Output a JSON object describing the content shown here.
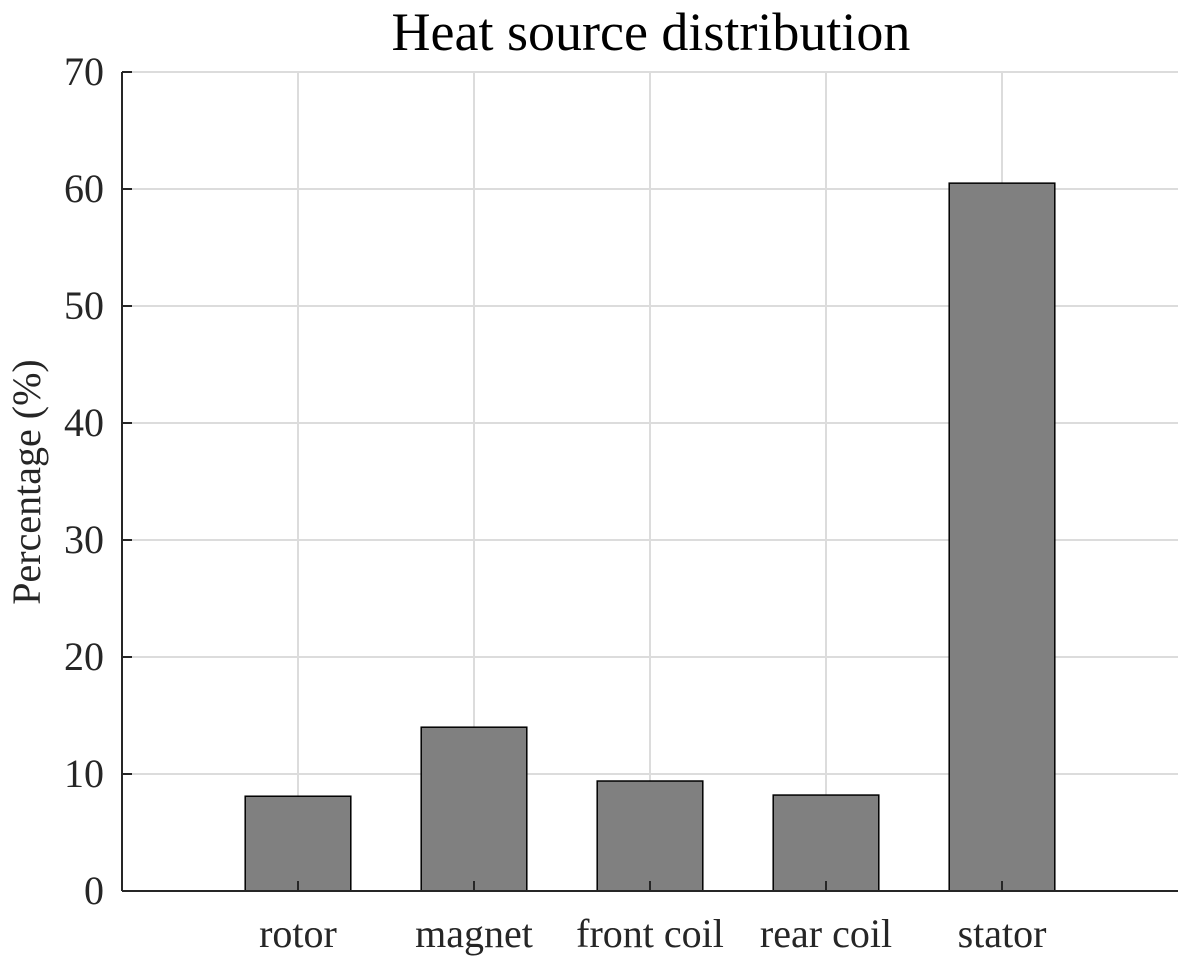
{
  "chart_data": {
    "type": "bar",
    "title": "Heat source distribution",
    "xlabel": "",
    "ylabel": "Percentage (%)",
    "categories": [
      "rotor",
      "magnet",
      "front coil",
      "rear coil",
      "stator"
    ],
    "values": [
      8.1,
      14.0,
      9.4,
      8.2,
      60.5
    ],
    "ylim": [
      0,
      70
    ],
    "yticks": [
      "0",
      "10",
      "20",
      "30",
      "40",
      "50",
      "60",
      "70"
    ],
    "xlim": [
      0,
      6
    ],
    "grid": true,
    "bar_color": "#808080",
    "bar_edge_color": "#000000",
    "grid_color": "#dcdcdc",
    "axis_color": "#262626"
  }
}
